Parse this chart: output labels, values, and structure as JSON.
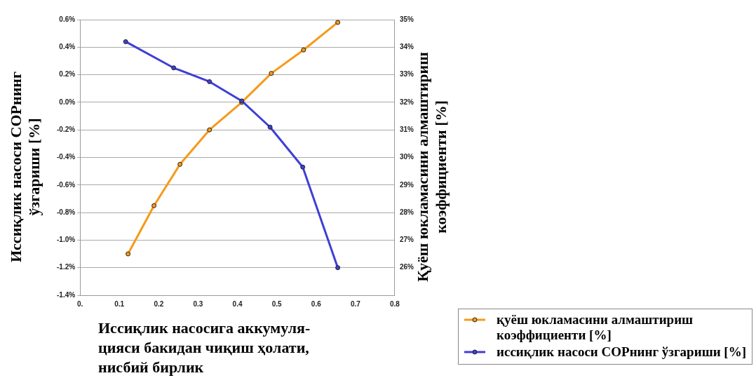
{
  "chart_data": {
    "type": "line",
    "xlabel": "Иссиқлик насосига аккумуля-\nцияси бакидан чиқиш ҳолати,\nнисбий бирлик",
    "ylabel": "Иссиқлик насоси COPнинг\nўзгариши [%]",
    "y2label": "Қуёш юкламасини алмаштириш\nкоэффициенти [%]",
    "series": [
      {
        "name": "қуёш юкламасини алмаштириш коэффициенти [%]",
        "color": "#f59a1b",
        "axis": "y2",
        "x": [
          0.122,
          0.188,
          0.254,
          0.329,
          0.411,
          0.486,
          0.568,
          0.655
        ],
        "values": [
          26.5,
          28.25,
          29.75,
          31,
          32,
          33.05,
          33.9,
          34.9
        ]
      },
      {
        "name": "иссиқлик насоси COPнинг ўзгариши [%]",
        "color": "#3f3fd6",
        "x": [
          0.116,
          0.238,
          0.329,
          0.411,
          0.483,
          0.566,
          0.655
        ],
        "values": [
          0.44,
          0.25,
          0.15,
          0.01,
          -0.18,
          -0.47,
          -1.2
        ]
      }
    ],
    "xlim": [
      0,
      0.8
    ],
    "xticks": [
      {
        "value": 0,
        "label": "0."
      },
      0.1,
      0.2,
      0.3,
      0.4,
      0.5,
      0.6,
      0.7,
      0.8
    ],
    "ylim": [
      -1.4,
      0.6
    ],
    "yticks": [
      {
        "value": -1.4,
        "label": "-1.4%"
      },
      {
        "value": -1.2,
        "label": "-1.2%"
      },
      {
        "value": -1,
        "label": "-1.0%"
      },
      {
        "value": -0.8,
        "label": "-0.8%"
      },
      {
        "value": -0.6,
        "label": "-0.6%"
      },
      {
        "value": -0.4,
        "label": "-0.4%"
      },
      {
        "value": -0.2,
        "label": "-0.2%"
      },
      {
        "value": 0,
        "label": "0.0%"
      },
      {
        "value": 0.2,
        "label": "0.2%"
      },
      {
        "value": 0.4,
        "label": "0.4%"
      },
      {
        "value": 0.6,
        "label": "0.6%"
      }
    ],
    "y2lim": [
      25,
      35
    ],
    "y2ticks": [
      {
        "value": 25,
        "label": null
      },
      {
        "value": 26,
        "label": "26%"
      },
      {
        "value": 27,
        "label": "27%"
      },
      {
        "value": 28,
        "label": "28%"
      },
      {
        "value": 29,
        "label": "29%"
      },
      {
        "value": 30,
        "label": "30%"
      },
      {
        "value": 31,
        "label": "31%"
      },
      {
        "value": 32,
        "label": "32%"
      },
      {
        "value": 33,
        "label": "33%"
      },
      {
        "value": 34,
        "label": "34%"
      },
      {
        "value": 35,
        "label": "35%"
      }
    ],
    "grid": "y",
    "legend": "bottom right",
    "marker": "circle",
    "line_style": "solid"
  }
}
